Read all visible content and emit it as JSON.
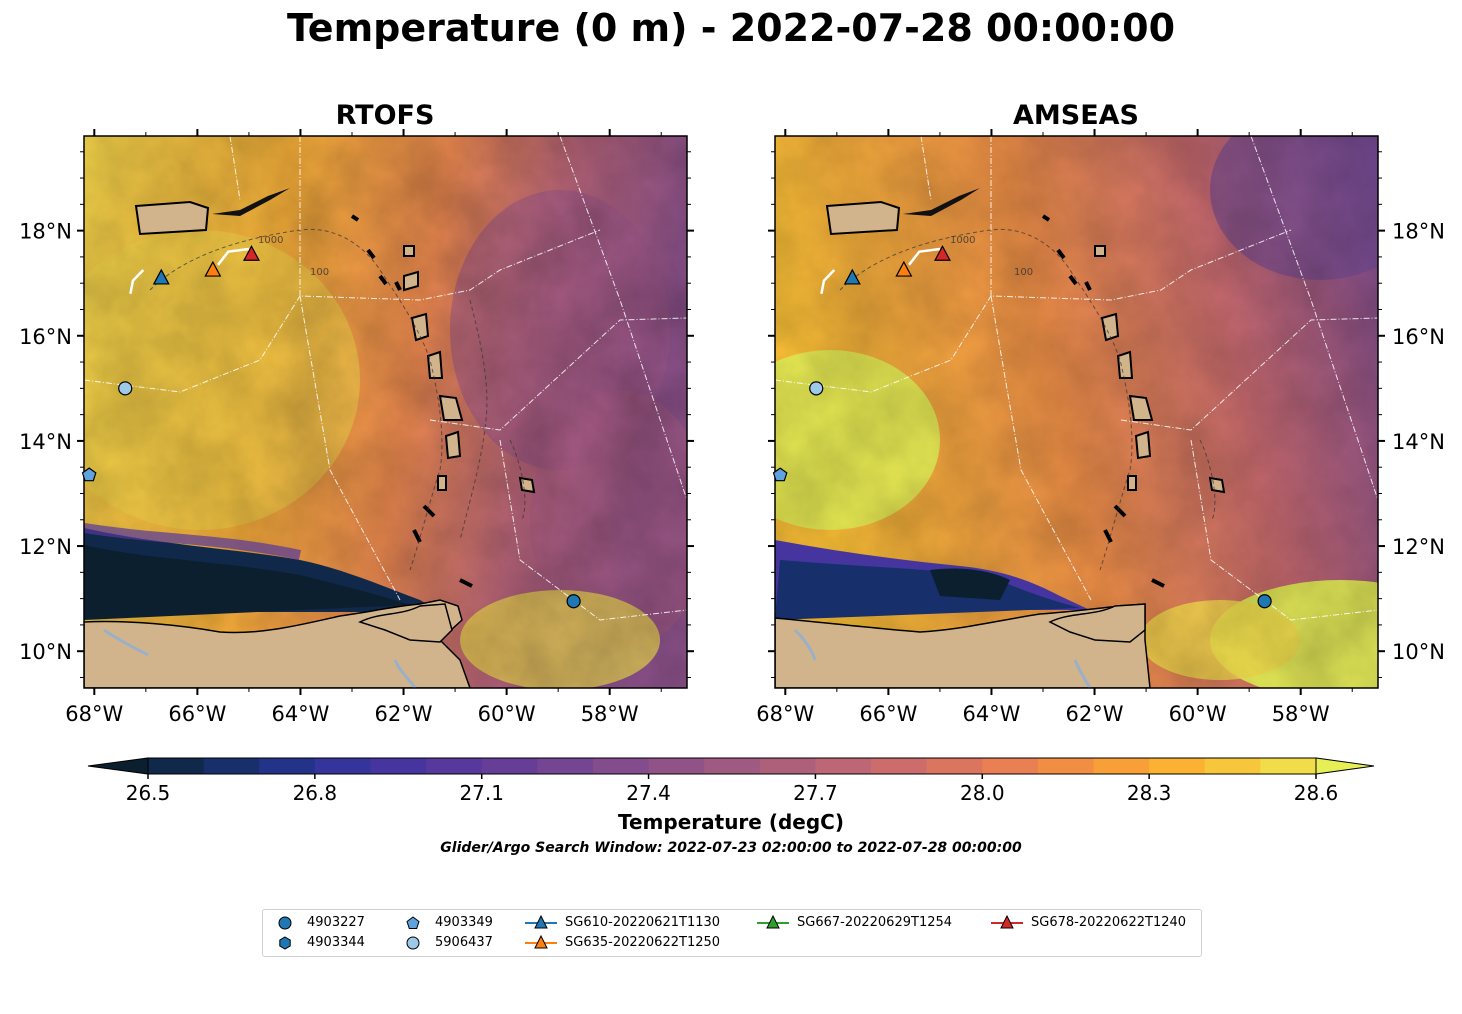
{
  "title": "Temperature (0 m) - 2022-07-28 00:00:00",
  "panels": [
    {
      "title": "RTOFS"
    },
    {
      "title": "AMSEAS"
    }
  ],
  "map": {
    "lon_range": [
      -68.2,
      -56.5
    ],
    "lat_range": [
      9.3,
      19.8
    ],
    "lon_ticks": [
      "68°W",
      "66°W",
      "64°W",
      "62°W",
      "60°W",
      "58°W"
    ],
    "lat_ticks": [
      "18°N",
      "16°N",
      "14°N",
      "12°N",
      "10°N"
    ],
    "land_color": "#d2b48c",
    "contour_labels": [
      "100",
      "1000"
    ]
  },
  "colorbar": {
    "label": "Temperature (degC)",
    "ticks": [
      "26.5",
      "26.8",
      "27.1",
      "27.4",
      "27.7",
      "28.0",
      "28.3",
      "28.6"
    ],
    "colors": [
      "#0b1f2f",
      "#10294a",
      "#172f6b",
      "#233389",
      "#35339c",
      "#46359f",
      "#57389c",
      "#663e98",
      "#744592",
      "#824c8d",
      "#915387",
      "#9f5a82",
      "#ae607b",
      "#bd6675",
      "#cd6d6b",
      "#dc7560",
      "#e97f52",
      "#f28e43",
      "#f89f37",
      "#fbb132",
      "#f8c63b",
      "#f1dd49",
      "#e6f056"
    ],
    "extend": "both"
  },
  "window_text": "Glider/Argo Search Window: 2022-07-23 02:00:00 to 2022-07-28 00:00:00",
  "markers": {
    "argo": [
      {
        "id": "4903227",
        "shape": "circle",
        "color": "#1f77b4",
        "lon": -58.7,
        "lat": 10.95
      },
      {
        "id": "4903344",
        "shape": "hexagon",
        "color": "#1f77b4"
      },
      {
        "id": "4903349",
        "shape": "pentagon",
        "color": "#5fa2dd",
        "lon": -68.1,
        "lat": 13.35
      },
      {
        "id": "5906437",
        "shape": "circle",
        "color": "#9ecae9",
        "lon": -67.4,
        "lat": 15.0
      }
    ],
    "gliders": [
      {
        "id": "SG610-20220621T1130",
        "color": "#1f77b4",
        "lon": -66.7,
        "lat": 17.1
      },
      {
        "id": "SG635-20220622T1250",
        "color": "#ff7f0e",
        "lon": -65.7,
        "lat": 17.25
      },
      {
        "id": "SG667-20220629T1254",
        "color": "#2ca02c"
      },
      {
        "id": "SG678-20220622T1240",
        "color": "#d62728",
        "lon": -64.95,
        "lat": 17.55
      }
    ]
  }
}
